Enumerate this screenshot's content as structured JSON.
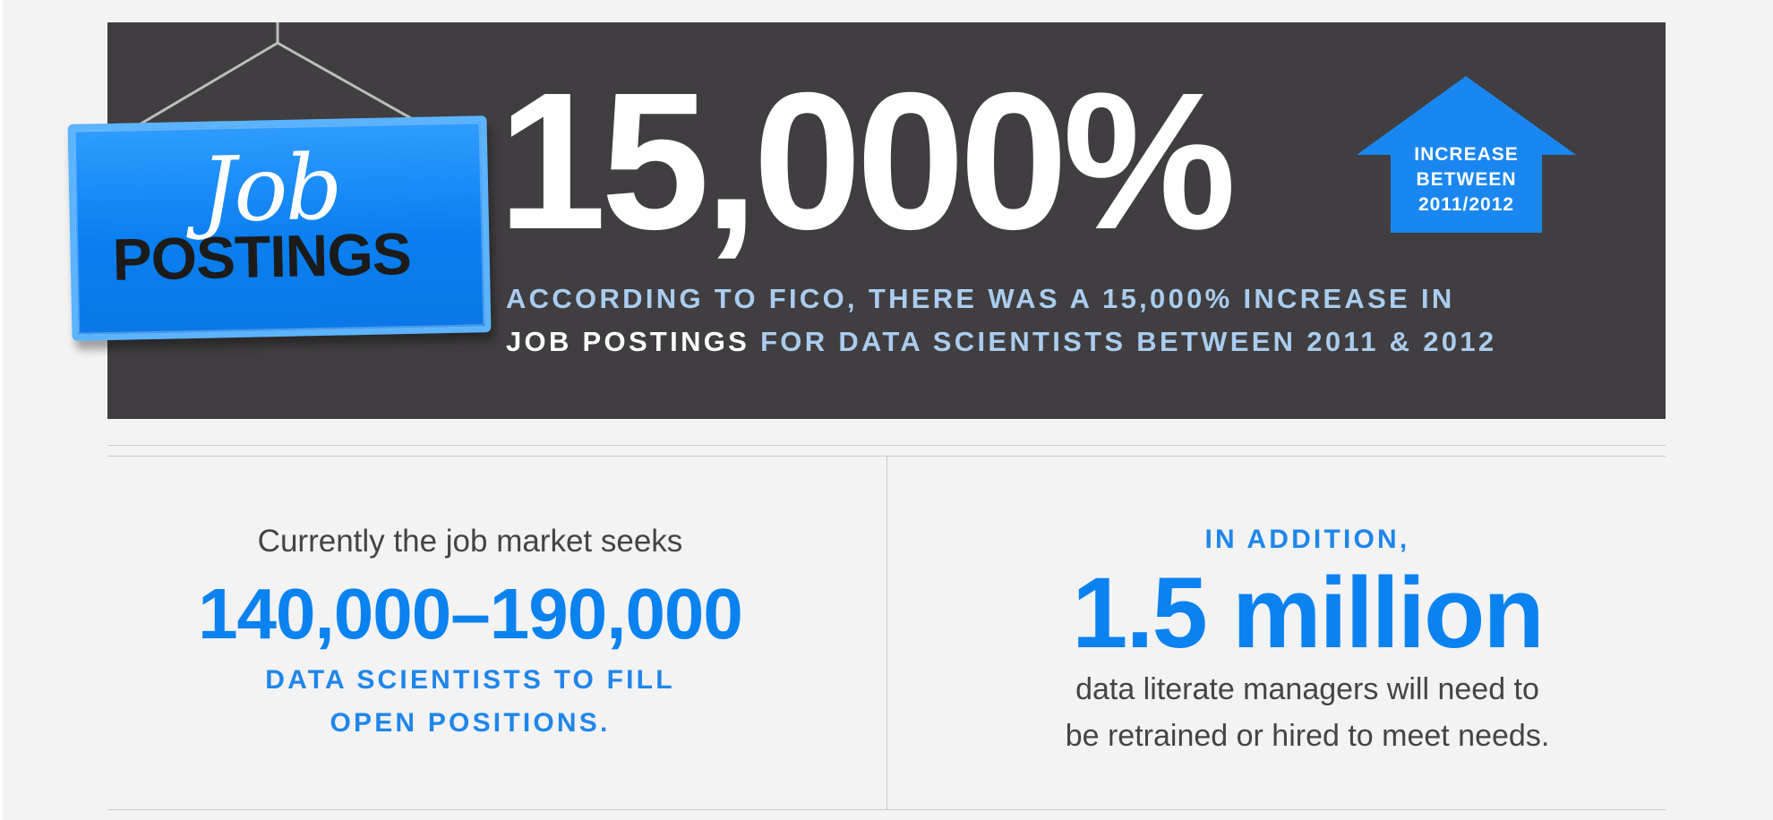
{
  "sign": {
    "script_word": "Job",
    "word": "POSTINGS"
  },
  "headline": {
    "value": "15,000%",
    "arrow_lines": [
      "INCREASE",
      "BETWEEN",
      "2011/2012"
    ],
    "description": {
      "line1": "ACCORDING TO FICO, THERE WAS A 15,000% INCREASE IN",
      "line2_strong": "JOB POSTINGS",
      "line2_rest": " FOR DATA SCIENTISTS BETWEEN 2011 & 2012"
    }
  },
  "left_stat": {
    "intro": "Currently the job market seeks",
    "value": "140,000–190,000",
    "caption_line1": "DATA SCIENTISTS TO FILL",
    "caption_line2": "OPEN POSITIONS."
  },
  "right_stat": {
    "intro": "IN ADDITION,",
    "value": "1.5 million",
    "caption_line1": "data literate managers will need to",
    "caption_line2": "be retrained or hired to meet needs."
  },
  "colors": {
    "banner": "#403e40",
    "accent_blue": "#0a82f0",
    "light_blue_text": "#a9cdf0",
    "page_background": "#f3f3f3"
  }
}
